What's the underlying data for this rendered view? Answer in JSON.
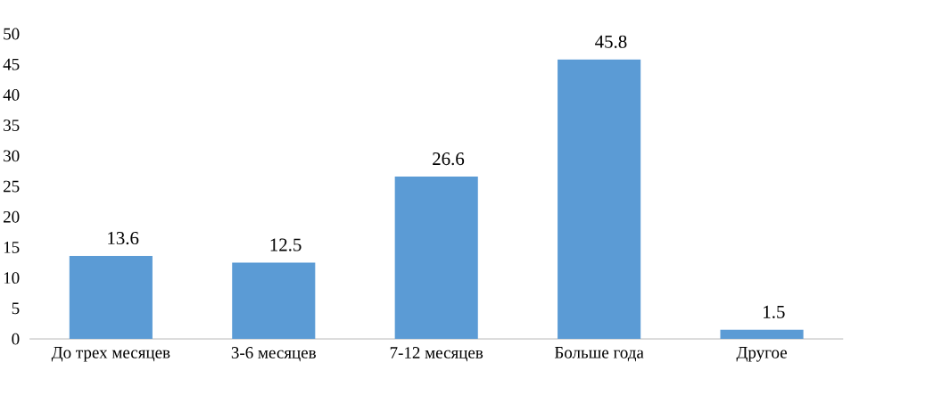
{
  "chart_data": {
    "type": "bar",
    "categories": [
      "До трех месяцев",
      "3-6 месяцев",
      "7-12 месяцев",
      "Больше года",
      "Другое"
    ],
    "values": [
      13.6,
      12.5,
      26.6,
      45.8,
      1.5
    ],
    "color": "#5b9bd5",
    "ylim": [
      0,
      50
    ],
    "yticks": [
      0,
      5,
      10,
      15,
      20,
      25,
      30,
      35,
      40,
      45,
      50
    ],
    "data_labels": true
  }
}
